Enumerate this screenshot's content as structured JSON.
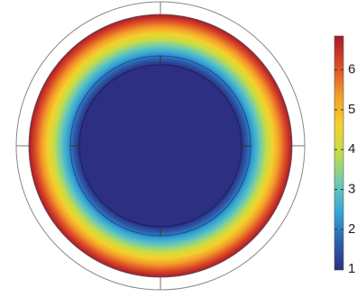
{
  "chart_data": {
    "type": "radial-field",
    "colorbar": {
      "lim": [
        0.98,
        6.85
      ],
      "ticks": [
        1,
        2,
        3,
        4,
        5,
        6
      ],
      "colormap": [
        "#2c2f82",
        "#2b63b0",
        "#35a8d8",
        "#6fcbb0",
        "#c4dd48",
        "#f4d12b",
        "#f39a2b",
        "#dd4b26",
        "#a6192a"
      ]
    }
  }
}
